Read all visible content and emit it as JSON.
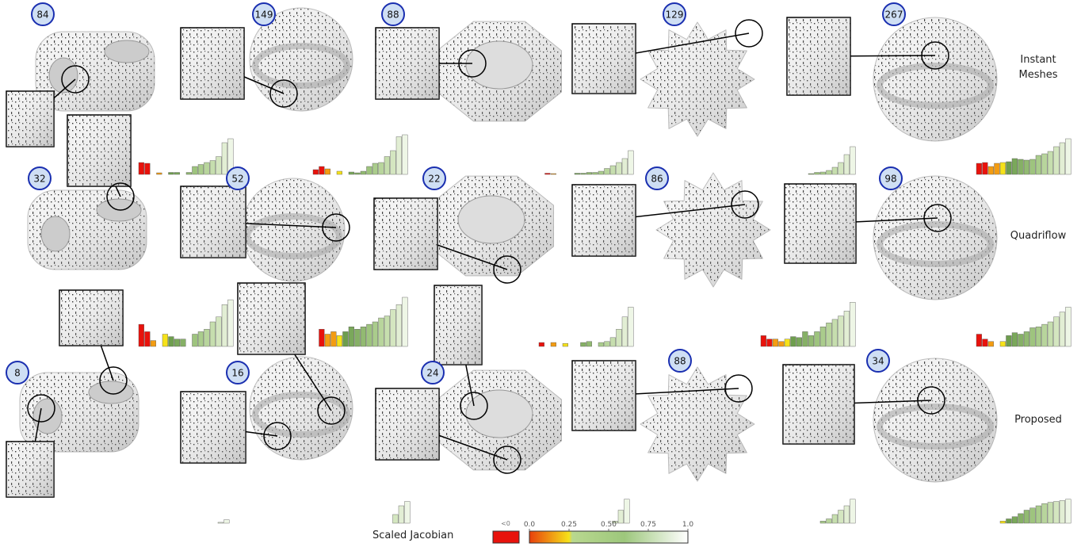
{
  "rows": [
    {
      "label": "Instant Meshes",
      "counts": [
        84,
        149,
        88,
        129,
        267
      ],
      "histograms": [
        [
          30,
          28,
          0,
          4,
          0,
          5,
          5,
          0,
          5,
          20,
          25,
          30,
          35,
          45,
          80,
          90
        ],
        [
          12,
          20,
          14,
          0,
          8,
          0,
          6,
          4,
          8,
          20,
          28,
          30,
          45,
          60,
          95,
          100
        ],
        [
          0,
          3,
          2,
          0,
          0,
          0,
          3,
          3,
          5,
          5,
          8,
          15,
          22,
          30,
          40,
          60
        ],
        [
          0,
          0,
          0,
          0,
          0,
          0,
          0,
          0,
          2,
          5,
          6,
          10,
          18,
          30,
          50,
          70
        ],
        [
          28,
          30,
          20,
          28,
          30,
          32,
          40,
          38,
          36,
          38,
          48,
          52,
          58,
          70,
          80,
          90
        ]
      ]
    },
    {
      "label": "Quadriflow",
      "counts": [
        32,
        52,
        22,
        86,
        98
      ],
      "histograms": [
        [
          45,
          30,
          12,
          0,
          25,
          20,
          15,
          15,
          0,
          25,
          30,
          35,
          50,
          60,
          85,
          95
        ],
        [
          0,
          35,
          25,
          30,
          22,
          30,
          40,
          35,
          40,
          45,
          50,
          58,
          62,
          75,
          85,
          100
        ],
        [
          8,
          0,
          8,
          0,
          6,
          0,
          0,
          8,
          10,
          0,
          8,
          10,
          18,
          35,
          60,
          80
        ],
        [
          22,
          15,
          15,
          10,
          15,
          20,
          18,
          30,
          22,
          30,
          40,
          48,
          55,
          62,
          72,
          90
        ],
        [
          25,
          15,
          10,
          0,
          10,
          22,
          28,
          25,
          30,
          38,
          40,
          45,
          50,
          60,
          70,
          80
        ]
      ]
    },
    {
      "label": "Proposed",
      "counts": [
        8,
        16,
        24,
        88,
        34
      ],
      "histograms": [
        [
          0,
          0,
          0,
          0,
          0,
          0,
          0,
          0,
          0,
          0,
          0,
          0,
          0,
          0,
          2,
          8
        ],
        [
          0,
          0,
          0,
          0,
          0,
          0,
          0,
          0,
          0,
          0,
          0,
          0,
          0,
          20,
          40,
          50
        ],
        [
          0,
          0,
          0,
          0,
          0,
          0,
          0,
          0,
          0,
          0,
          0,
          0,
          0,
          5,
          30,
          55
        ],
        [
          0,
          0,
          0,
          0,
          0,
          0,
          0,
          0,
          0,
          0,
          5,
          10,
          20,
          30,
          40,
          55
        ],
        [
          0,
          0,
          0,
          0,
          5,
          10,
          15,
          22,
          30,
          35,
          40,
          45,
          48,
          50,
          52,
          55
        ]
      ]
    }
  ],
  "legend": {
    "title": "Scaled Jacobian",
    "negative": "<0",
    "ticks": [
      {
        "value": 0,
        "label": "0.0"
      },
      0.25,
      {
        "value": 0.5,
        "label": "0.50"
      },
      0.75,
      {
        "value": 1,
        "label": "1.0"
      }
    ]
  }
}
